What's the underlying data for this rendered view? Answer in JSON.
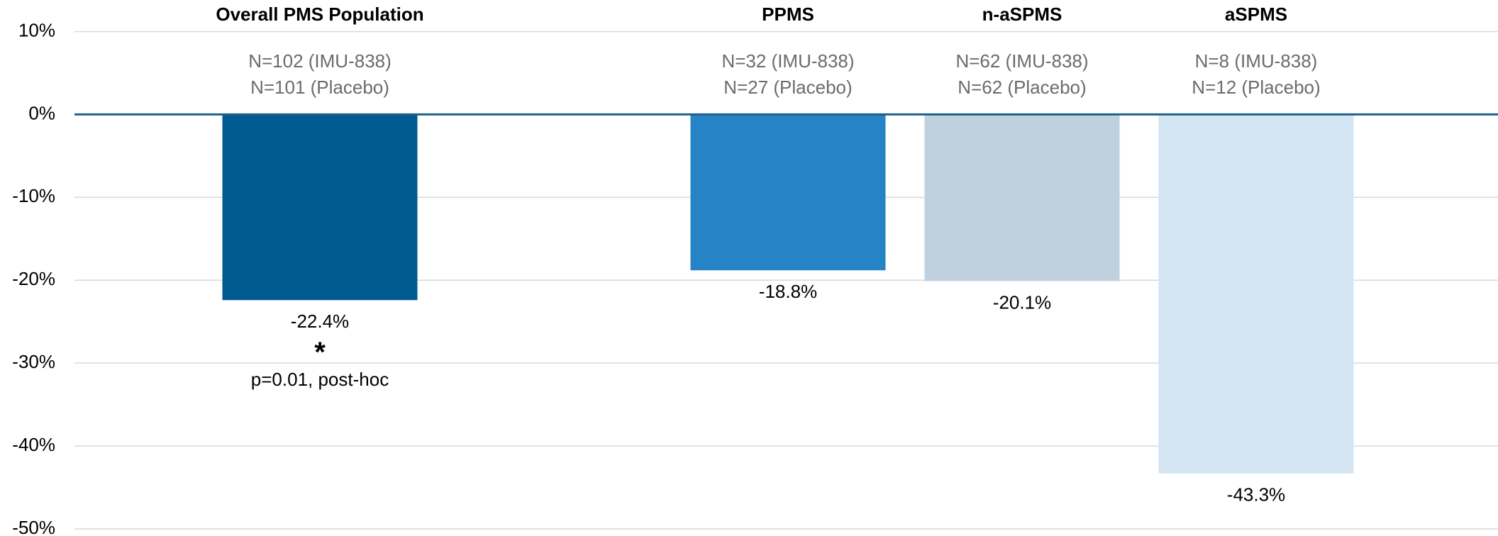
{
  "chart_data": {
    "type": "bar",
    "categories": [
      "Overall PMS Population",
      null,
      "PPMS",
      "n-aSPMS",
      "aSPMS"
    ],
    "values": [
      -22.4,
      null,
      -18.8,
      -20.1,
      -43.3
    ],
    "value_labels": [
      "-22.4%",
      null,
      "-18.8%",
      "-20.1%",
      "-43.3%"
    ],
    "colors": [
      "#005a8f",
      null,
      "#2683c6",
      "#bfd1df",
      "#d3e5f2"
    ],
    "group_labels": [
      [
        "N=102 (IMU-838)",
        "N=101 (Placebo)"
      ],
      null,
      [
        "N=32 (IMU-838)",
        "N=27 (Placebo)"
      ],
      [
        "N=62 (IMU-838)",
        "N=62 (Placebo)"
      ],
      [
        "N=8 (IMU-838)",
        "N=12 (Placebo)"
      ]
    ],
    "annotations": [
      {
        "category": "Overall PMS Population",
        "symbol": "*",
        "text": "p=0.01, post-hoc"
      }
    ],
    "ylim": [
      -50,
      10
    ],
    "yticks": [
      {
        "value": 10,
        "label": "10%"
      },
      {
        "value": 0,
        "label": "0%"
      },
      {
        "value": -10,
        "label": "-10%"
      },
      {
        "value": -20,
        "label": "-20%"
      },
      {
        "value": -30,
        "label": "-30%"
      },
      {
        "value": -40,
        "label": "-40%"
      },
      {
        "value": -50,
        "label": "-50%"
      }
    ],
    "grid": true
  }
}
